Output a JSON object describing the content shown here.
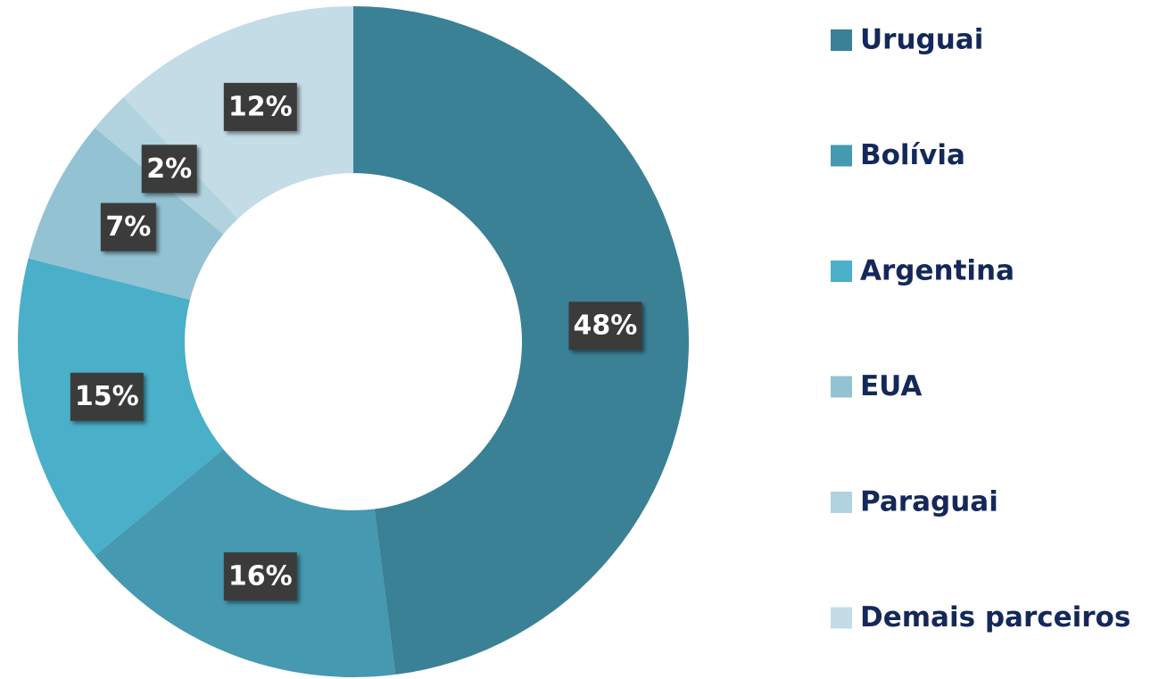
{
  "chart_data": {
    "type": "donut",
    "categories": [
      "Uruguai",
      "Bolívia",
      "Argentina",
      "EUA",
      "Paraguai",
      "Demais parceiros"
    ],
    "values": [
      48,
      16,
      15,
      7,
      2,
      12
    ],
    "value_labels": [
      "48%",
      "16%",
      "15%",
      "7%",
      "2%",
      "12%"
    ],
    "colors": [
      "#3a8196",
      "#4599b0",
      "#4aafc8",
      "#93c2d3",
      "#b0d3df",
      "#c3dce6"
    ],
    "legend": "right"
  }
}
